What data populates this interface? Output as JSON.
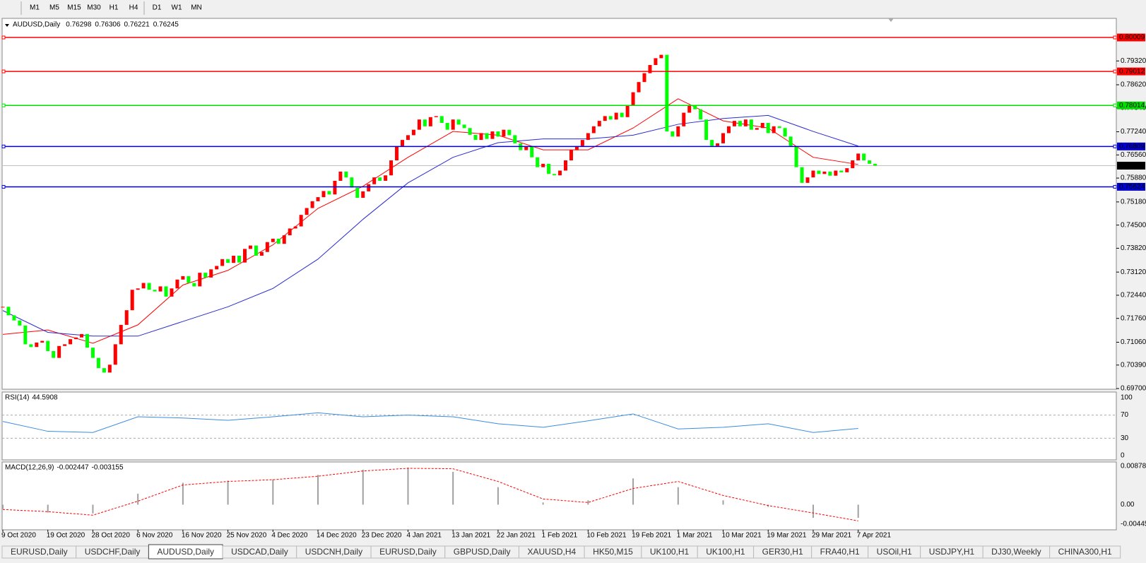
{
  "toolbar": {
    "timeframes": [
      "M1",
      "M5",
      "M15",
      "M30",
      "H1",
      "H4",
      "D1",
      "W1",
      "MN"
    ]
  },
  "chart_data": {
    "type": "candlestick",
    "title": "AUDUSD,Daily",
    "quote": [
      0.76298,
      0.76306,
      0.76221,
      0.76245
    ],
    "up_color": "#ff0000",
    "down_color": "#00ff00",
    "categories": [
      "9 Oct 2020",
      null,
      null,
      null,
      null,
      null,
      null,
      null,
      "19 Oct 2020",
      null,
      null,
      null,
      null,
      null,
      null,
      null,
      "28 Oct 2020",
      null,
      null,
      null,
      null,
      null,
      null,
      null,
      "6 Nov 2020",
      null,
      null,
      null,
      null,
      null,
      null,
      null,
      "16 Nov 2020",
      null,
      null,
      null,
      null,
      null,
      null,
      null,
      "25 Nov 2020",
      null,
      null,
      null,
      null,
      null,
      null,
      null,
      "4 Dec 2020",
      null,
      null,
      null,
      null,
      null,
      null,
      null,
      "14 Dec 2020",
      null,
      null,
      null,
      null,
      null,
      null,
      null,
      "23 Dec 2020",
      null,
      null,
      null,
      null,
      null,
      null,
      null,
      "4 Jan 2021",
      null,
      null,
      null,
      null,
      null,
      null,
      null,
      "13 Jan 2021",
      null,
      null,
      null,
      null,
      null,
      null,
      null,
      "22 Jan 2021",
      null,
      null,
      null,
      null,
      null,
      null,
      null,
      "1 Feb 2021",
      null,
      null,
      null,
      null,
      null,
      null,
      null,
      "10 Feb 2021",
      null,
      null,
      null,
      null,
      null,
      null,
      null,
      "19 Feb 2021",
      null,
      null,
      null,
      null,
      null,
      null,
      null,
      "1 Mar 2021",
      null,
      null,
      null,
      null,
      null,
      null,
      null,
      "10 Mar 2021",
      null,
      null,
      null,
      null,
      null,
      null,
      null,
      "19 Mar 2021",
      null,
      null,
      null,
      null,
      null,
      null,
      null,
      "29 Mar 2021",
      null,
      null,
      null,
      null,
      null,
      null,
      null,
      "7 Apr 2021",
      null,
      null,
      null
    ],
    "values": [
      0.721,
      0.7185,
      0.717,
      0.7155,
      0.71,
      0.7092,
      0.7105,
      0.711,
      0.708,
      0.706,
      0.7095,
      0.71,
      0.7115,
      0.712,
      0.713,
      0.709,
      0.706,
      0.703,
      0.7017,
      0.704,
      0.71,
      0.7157,
      0.72,
      0.726,
      0.7264,
      0.728,
      0.726,
      0.7255,
      0.727,
      0.724,
      0.7264,
      0.729,
      0.73,
      0.728,
      0.727,
      0.731,
      0.7296,
      0.732,
      0.733,
      0.735,
      0.7339,
      0.736,
      0.734,
      0.738,
      0.739,
      0.736,
      0.7371,
      0.74,
      0.741,
      0.7395,
      0.742,
      0.744,
      0.7446,
      0.748,
      0.75,
      0.752,
      0.7532,
      0.755,
      0.754,
      0.758,
      0.7607,
      0.759,
      0.756,
      0.753,
      0.7549,
      0.757,
      0.759,
      0.758,
      0.7596,
      0.764,
      0.768,
      0.77,
      0.7714,
      0.773,
      0.776,
      0.774,
      0.7767,
      0.777,
      0.775,
      0.773,
      0.776,
      0.7745,
      0.7735,
      0.7715,
      0.77,
      0.772,
      0.7703,
      0.7725,
      0.771,
      0.773,
      0.7714,
      0.769,
      0.767,
      0.768,
      0.7649,
      0.762,
      0.763,
      0.76,
      0.7596,
      0.761,
      0.764,
      0.767,
      0.7682,
      0.77,
      0.772,
      0.774,
      0.7756,
      0.777,
      0.776,
      0.778,
      0.7767,
      0.78,
      0.784,
      0.787,
      0.7896,
      0.792,
      0.794,
      0.795,
      0.7725,
      0.771,
      0.774,
      0.778,
      0.78,
      0.779,
      0.776,
      0.77,
      0.7682,
      0.769,
      0.772,
      0.774,
      0.7756,
      0.774,
      0.776,
      0.773,
      0.7735,
      0.775,
      0.772,
      0.774,
      0.7735,
      0.771,
      0.7682,
      0.762,
      0.7574,
      0.759,
      0.761,
      0.76,
      0.7607,
      0.7595,
      0.761,
      0.7605,
      0.7617,
      0.764,
      0.766,
      0.764,
      0.763,
      0.76245
    ],
    "ylim": [
      0.6968,
      0.8057
    ],
    "yticks": [
      {
        "value": 0.697,
        "label": "0.69700"
      },
      {
        "value": 0.7039,
        "label": "0.70390"
      },
      {
        "value": 0.7106,
        "label": "0.71060"
      },
      {
        "value": 0.7176,
        "label": "0.71760"
      },
      {
        "value": 0.7244,
        "label": "0.72440"
      },
      {
        "value": 0.7312,
        "label": "0.73120"
      },
      {
        "value": 0.7382,
        "label": "0.73820"
      },
      {
        "value": 0.745,
        "label": "0.74500"
      },
      {
        "value": 0.7518,
        "label": "0.75180"
      },
      {
        "value": 0.7588,
        "label": "0.75880"
      },
      {
        "value": 0.7656,
        "label": "0.76560"
      },
      {
        "value": 0.7724,
        "label": "0.77240"
      },
      {
        "value": 0.7794,
        "label": "0.77940"
      },
      {
        "value": 0.7862,
        "label": "0.78620"
      },
      {
        "value": 0.7932,
        "label": "0.79320"
      }
    ],
    "levels": [
      {
        "value": 0.80009,
        "color": "#ff0000"
      },
      {
        "value": 0.79012,
        "color": "#ff0000"
      },
      {
        "value": 0.78014,
        "color": "#00e000"
      },
      {
        "value": 0.76809,
        "color": "#0000d0"
      },
      {
        "value": 0.75624,
        "color": "#0000d0"
      }
    ],
    "current": {
      "value": 0.76245,
      "color": "#c0c0c0"
    },
    "ma": [
      {
        "color": "#ff0000",
        "x": [
          0,
          8,
          16,
          24,
          32,
          40,
          48,
          56,
          64,
          72,
          80,
          88,
          96,
          104,
          112,
          120,
          128,
          136,
          144,
          152
        ],
        "values": [
          0.7129,
          0.7142,
          0.7103,
          0.7157,
          0.7274,
          0.7317,
          0.7392,
          0.7499,
          0.7564,
          0.7649,
          0.7725,
          0.7714,
          0.7671,
          0.7671,
          0.7735,
          0.7821,
          0.7756,
          0.7735,
          0.7649,
          0.7628
        ]
      },
      {
        "color": "#2a2ad0",
        "x": [
          0,
          8,
          16,
          24,
          32,
          40,
          48,
          56,
          64,
          72,
          80,
          88,
          96,
          104,
          112,
          120,
          128,
          136,
          144,
          152
        ],
        "values": [
          0.7199,
          0.7135,
          0.7124,
          0.7124,
          0.7167,
          0.721,
          0.7264,
          0.735,
          0.7467,
          0.7574,
          0.7649,
          0.7692,
          0.7703,
          0.7703,
          0.7714,
          0.7746,
          0.7763,
          0.7772,
          0.7725,
          0.7682
        ]
      }
    ],
    "rsi": {
      "title": "RSI(14)",
      "last": 44.5908,
      "color": "#3c8ce0",
      "ylim": [
        0,
        100
      ],
      "yticks": [
        0,
        30,
        70,
        100
      ],
      "x": [
        0,
        8,
        16,
        24,
        32,
        40,
        48,
        56,
        64,
        72,
        80,
        88,
        96,
        104,
        112,
        120,
        128,
        136,
        144,
        152
      ],
      "values": [
        59,
        42,
        40,
        67,
        65,
        61,
        67,
        74,
        67,
        70,
        67,
        55,
        49,
        60,
        72,
        46,
        49,
        55,
        40,
        47
      ]
    },
    "macd": {
      "title": "MACD(12,26,9)",
      "last": [
        -0.002447,
        -0.003155
      ],
      "hist_color": "#a0a0a0",
      "signal_color": "#ff0000",
      "ylim": [
        -0.004451,
        0.008782
      ],
      "yticks": [
        -0.004451,
        {
          "value": 0,
          "label": "0.00"
        },
        0.008782
      ],
      "x": [
        0,
        8,
        16,
        24,
        32,
        40,
        48,
        56,
        64,
        72,
        80,
        88,
        96,
        104,
        112,
        120,
        128,
        136,
        144,
        152
      ],
      "values": [
        -0.001,
        -0.0018,
        -0.002,
        0.0025,
        0.005,
        0.0055,
        0.0058,
        0.0068,
        0.008,
        0.0085,
        0.0075,
        0.004,
        0.0005,
        0.001,
        0.006,
        0.004,
        0.001,
        -0.0005,
        -0.003,
        -0.003
      ],
      "signal": [
        -0.0011,
        -0.0016,
        -0.0024,
        0.0008,
        0.0045,
        0.0053,
        0.0057,
        0.0065,
        0.0077,
        0.0083,
        0.0082,
        0.0053,
        0.0013,
        0.0005,
        0.0037,
        0.0053,
        0.0021,
        -0.0002,
        -0.0019,
        -0.0037
      ]
    }
  },
  "tabs": {
    "items": [
      "EURUSD,Daily",
      "USDCHF,Daily",
      "AUDUSD,Daily",
      "USDCAD,Daily",
      "USDCNH,Daily",
      "EURUSD,Daily",
      "GBPUSD,Daily",
      "XAUUSD,H4",
      "HK50,M15",
      "UK100,H1",
      "UK100,H1",
      "GER30,H1",
      "FRA40,H1",
      "USOil,H1",
      "USDJPY,H1",
      "DJ30,Weekly",
      "CHINA300,H1"
    ],
    "active": 2
  }
}
